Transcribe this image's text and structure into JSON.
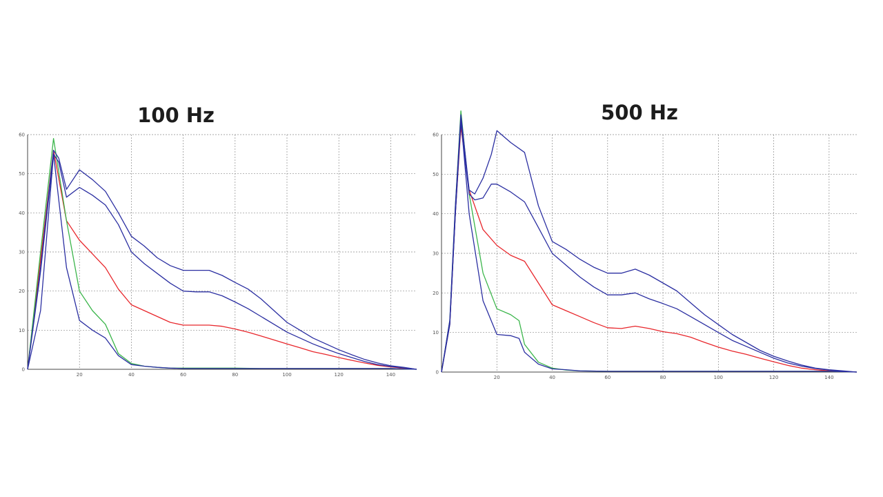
{
  "chart_data": [
    {
      "type": "line",
      "title": "100 Hz",
      "xlabel": "",
      "ylabel": "",
      "xlim": [
        0,
        150
      ],
      "ylim": [
        0,
        60
      ],
      "xticks": [
        20,
        40,
        60,
        80,
        100,
        120,
        140
      ],
      "yticks": [
        0,
        10,
        20,
        30,
        40,
        50,
        60
      ],
      "grid": true,
      "series": [
        {
          "color": "#e8262b",
          "x": [
            0,
            5,
            10,
            15,
            20,
            25,
            30,
            35,
            40,
            45,
            50,
            55,
            60,
            65,
            70,
            75,
            80,
            85,
            90,
            95,
            100,
            105,
            110,
            115,
            120,
            125,
            130,
            135,
            140,
            145,
            150
          ],
          "y": [
            0,
            28,
            56,
            38,
            33,
            29.5,
            26,
            20.5,
            16.5,
            15,
            13.5,
            12,
            11.3,
            11.3,
            11.3,
            11,
            10.3,
            9.5,
            8.5,
            7.5,
            6.5,
            5.5,
            4.5,
            3.8,
            3,
            2.3,
            1.6,
            1,
            0.6,
            0.3,
            0
          ]
        },
        {
          "color": "#3ab54a",
          "x": [
            0,
            5,
            10,
            15,
            20,
            25,
            30,
            35,
            40,
            45,
            50,
            55,
            60,
            70,
            80,
            90,
            100,
            120,
            140,
            150
          ],
          "y": [
            0,
            30,
            59,
            38,
            20,
            15,
            11.5,
            4,
            1.5,
            0.8,
            0.5,
            0.3,
            0.3,
            0.3,
            0.3,
            0.2,
            0.2,
            0.2,
            0.2,
            0
          ]
        },
        {
          "color": "#2a2ea1",
          "x": [
            0,
            5,
            10,
            15,
            20,
            25,
            30,
            35,
            40,
            45,
            50,
            55,
            60,
            70,
            80,
            90,
            100,
            120,
            140,
            150
          ],
          "y": [
            0,
            15,
            55,
            26,
            12.5,
            10,
            8,
            3.5,
            1.2,
            0.8,
            0.5,
            0.3,
            0.2,
            0.2,
            0.2,
            0.2,
            0.2,
            0.2,
            0.2,
            0
          ]
        },
        {
          "color": "#2a2ea1",
          "x": [
            0,
            5,
            10,
            12,
            15,
            20,
            25,
            30,
            35,
            40,
            45,
            50,
            55,
            60,
            65,
            70,
            75,
            80,
            85,
            90,
            95,
            100,
            105,
            110,
            115,
            120,
            125,
            130,
            135,
            140,
            145,
            150
          ],
          "y": [
            0,
            25,
            55,
            53,
            44,
            46.5,
            44.5,
            42,
            37,
            30,
            27,
            24.5,
            22,
            20,
            19.8,
            19.8,
            18.8,
            17.2,
            15.5,
            13.5,
            11.5,
            9.5,
            8,
            6.5,
            5.2,
            4,
            3,
            2,
            1.2,
            0.7,
            0.4,
            0
          ]
        },
        {
          "color": "#2a2ea1",
          "x": [
            0,
            5,
            10,
            12,
            15,
            20,
            25,
            30,
            35,
            40,
            45,
            50,
            55,
            60,
            65,
            70,
            75,
            80,
            85,
            90,
            95,
            100,
            105,
            110,
            115,
            120,
            125,
            130,
            135,
            140,
            145,
            150
          ],
          "y": [
            0,
            26,
            56,
            54,
            46,
            51,
            48.5,
            45.5,
            40,
            34,
            31.5,
            28.5,
            26.5,
            25.3,
            25.3,
            25.3,
            24,
            22.2,
            20.5,
            18,
            15,
            12,
            10,
            8,
            6.5,
            5,
            3.7,
            2.5,
            1.6,
            0.9,
            0.5,
            0
          ]
        }
      ]
    },
    {
      "type": "line",
      "title": "500 Hz",
      "xlabel": "",
      "ylabel": "",
      "xlim": [
        0,
        150
      ],
      "ylim": [
        0,
        60
      ],
      "xticks": [
        20,
        40,
        60,
        80,
        100,
        120,
        140
      ],
      "yticks": [
        0,
        10,
        20,
        30,
        40,
        50,
        60
      ],
      "grid": true,
      "series": [
        {
          "color": "#e8262b",
          "x": [
            0,
            3,
            5,
            7,
            10,
            15,
            20,
            25,
            30,
            35,
            40,
            45,
            50,
            55,
            60,
            65,
            70,
            75,
            80,
            85,
            90,
            95,
            100,
            105,
            110,
            115,
            120,
            125,
            130,
            135,
            140,
            145,
            150
          ],
          "y": [
            0,
            12,
            40,
            62,
            46,
            36,
            32,
            29.5,
            28,
            22.5,
            17,
            15.5,
            14,
            12.5,
            11.2,
            11,
            11.6,
            11,
            10.2,
            9.7,
            8.8,
            7.5,
            6.3,
            5.3,
            4.5,
            3.5,
            2.6,
            1.7,
            1,
            0.6,
            0.3,
            0.1,
            0
          ]
        },
        {
          "color": "#3ab54a",
          "x": [
            0,
            3,
            5,
            7,
            10,
            15,
            20,
            25,
            28,
            30,
            35,
            40,
            45,
            50,
            60,
            80,
            100,
            120,
            140,
            150
          ],
          "y": [
            0,
            13,
            42,
            66,
            45,
            25,
            16,
            14.5,
            13,
            7,
            2.5,
            1,
            0.5,
            0.3,
            0.2,
            0.2,
            0.2,
            0.2,
            0.2,
            0
          ]
        },
        {
          "color": "#2a2ea1",
          "x": [
            0,
            3,
            5,
            7,
            10,
            15,
            20,
            25,
            28,
            30,
            35,
            40,
            45,
            50,
            60,
            80,
            100,
            120,
            140,
            150
          ],
          "y": [
            0,
            12,
            40,
            64,
            40,
            18,
            9.5,
            9.2,
            8.5,
            5,
            2,
            0.8,
            0.6,
            0.3,
            0.2,
            0.2,
            0.2,
            0.2,
            0.2,
            0
          ]
        },
        {
          "color": "#2a2ea1",
          "x": [
            0,
            3,
            5,
            7,
            10,
            12,
            15,
            18,
            20,
            25,
            30,
            35,
            40,
            45,
            50,
            55,
            60,
            65,
            70,
            75,
            80,
            85,
            90,
            95,
            100,
            105,
            110,
            115,
            120,
            125,
            130,
            135,
            140,
            145,
            150
          ],
          "y": [
            0,
            12,
            40,
            63,
            45,
            43.5,
            44,
            47.5,
            47.5,
            45.5,
            43,
            36.5,
            30,
            27,
            24,
            21.5,
            19.5,
            19.5,
            20,
            18.5,
            17.3,
            16,
            14,
            12,
            10,
            8,
            6.5,
            5,
            3.5,
            2.3,
            1.5,
            0.9,
            0.5,
            0.2,
            0
          ]
        },
        {
          "color": "#2a2ea1",
          "x": [
            0,
            3,
            5,
            7,
            10,
            12,
            15,
            18,
            20,
            25,
            30,
            35,
            40,
            45,
            50,
            55,
            60,
            65,
            70,
            75,
            80,
            85,
            90,
            95,
            100,
            105,
            110,
            115,
            120,
            125,
            130,
            135,
            140,
            145,
            150
          ],
          "y": [
            0,
            13,
            42,
            65,
            46,
            45,
            49,
            55,
            61,
            58,
            55.5,
            42,
            33,
            31,
            28.5,
            26.5,
            25,
            25,
            26,
            24.5,
            22.5,
            20.5,
            17.5,
            14.5,
            12,
            9.5,
            7.5,
            5.5,
            4,
            2.8,
            1.8,
            1,
            0.6,
            0.3,
            0
          ]
        }
      ]
    }
  ]
}
